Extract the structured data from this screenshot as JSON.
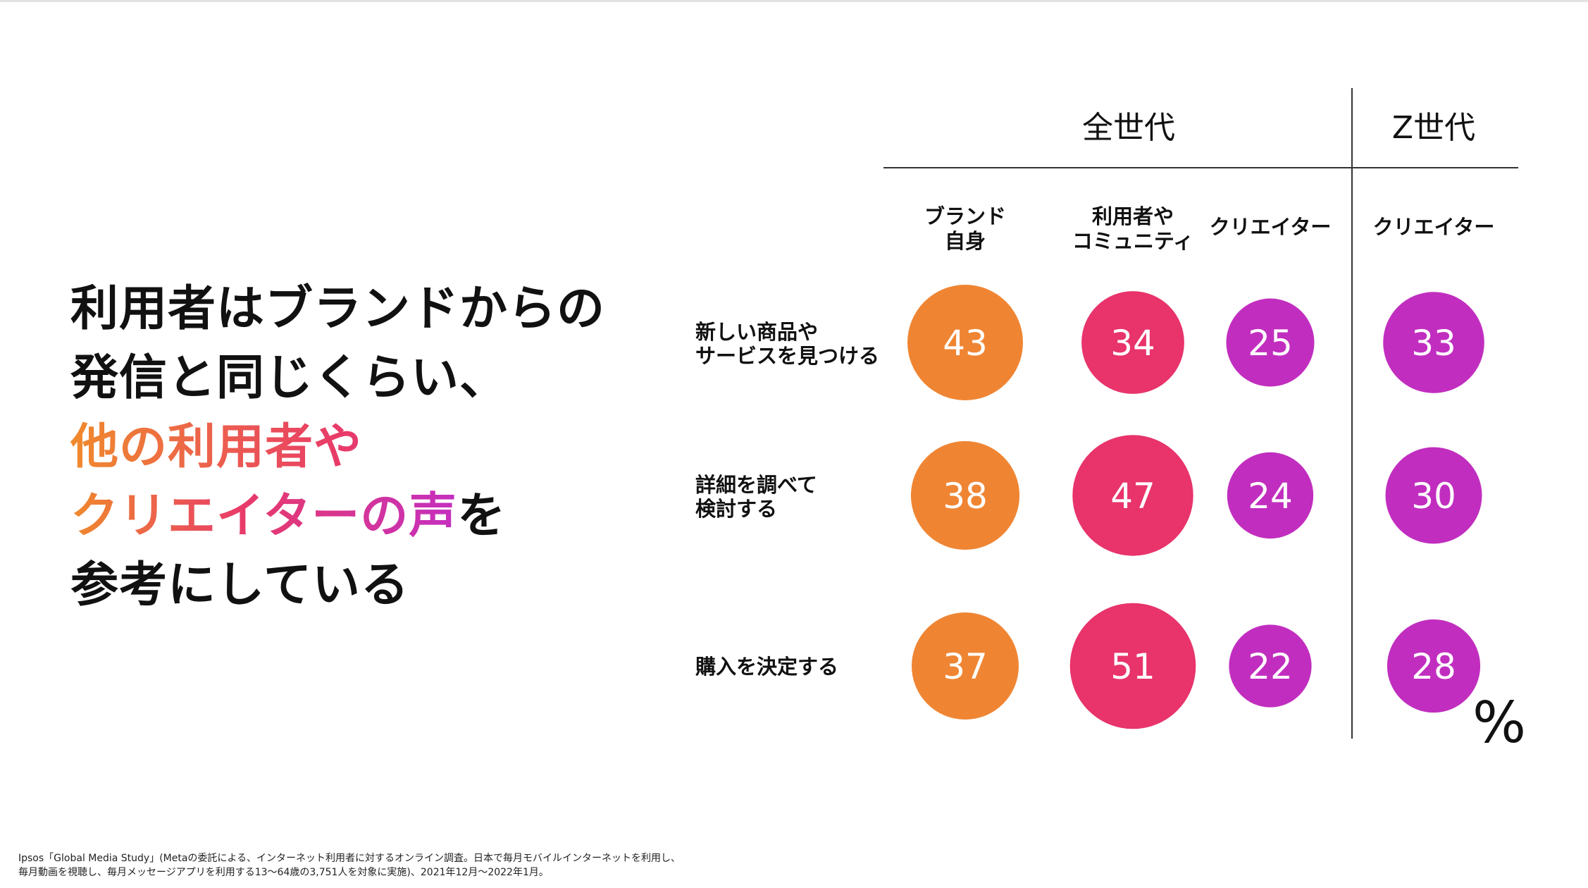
{
  "headline": {
    "line1": "利用者はブランドからの",
    "line2": "発信と同じくらい、",
    "line3": "他の利用者や",
    "line4_highlight": "クリエイターの声",
    "line4_rest": "を",
    "line5": "参考にしている"
  },
  "footnote": {
    "line1": "Ipsos「Global Media Study」(Metaの委託による、インターネット利用者に対するオンライン調査。日本で毎月モバイルインターネットを利用し、",
    "line2": "毎月動画を視聴し、毎月メッセージアプリを利用する13〜64歳の3,751人を対象に実施)、2021年12月〜2022年1月。"
  },
  "colors": {
    "orange": "#ef8533",
    "pink": "#e8336b",
    "purple": "#c12ebf",
    "gradient_start": "#f08a2c",
    "gradient_end": "#c42fc0"
  },
  "chart_data": {
    "type": "bubble-matrix",
    "unit": "%",
    "groups": [
      {
        "name": "全世代",
        "columns": [
          0,
          1,
          2
        ]
      },
      {
        "name": "Z世代",
        "columns": [
          3
        ]
      }
    ],
    "columns": [
      {
        "label_lines": [
          "ブランド",
          "自身"
        ],
        "color": "#ef8533"
      },
      {
        "label_lines": [
          "利用者や",
          "コミュニティ"
        ],
        "color": "#e8336b"
      },
      {
        "label_lines": [
          "クリエイター"
        ],
        "color": "#c12ebf"
      },
      {
        "label_lines": [
          "クリエイター"
        ],
        "color": "#c12ebf"
      }
    ],
    "rows": [
      {
        "label_lines": [
          "新しい商品や",
          "サービスを見つける"
        ],
        "values": [
          43,
          34,
          25,
          33
        ]
      },
      {
        "label_lines": [
          "詳細を調べて",
          "検討する"
        ],
        "values": [
          38,
          47,
          24,
          30
        ]
      },
      {
        "label_lines": [
          "購入を決定する"
        ],
        "values": [
          37,
          51,
          22,
          28
        ]
      }
    ]
  }
}
